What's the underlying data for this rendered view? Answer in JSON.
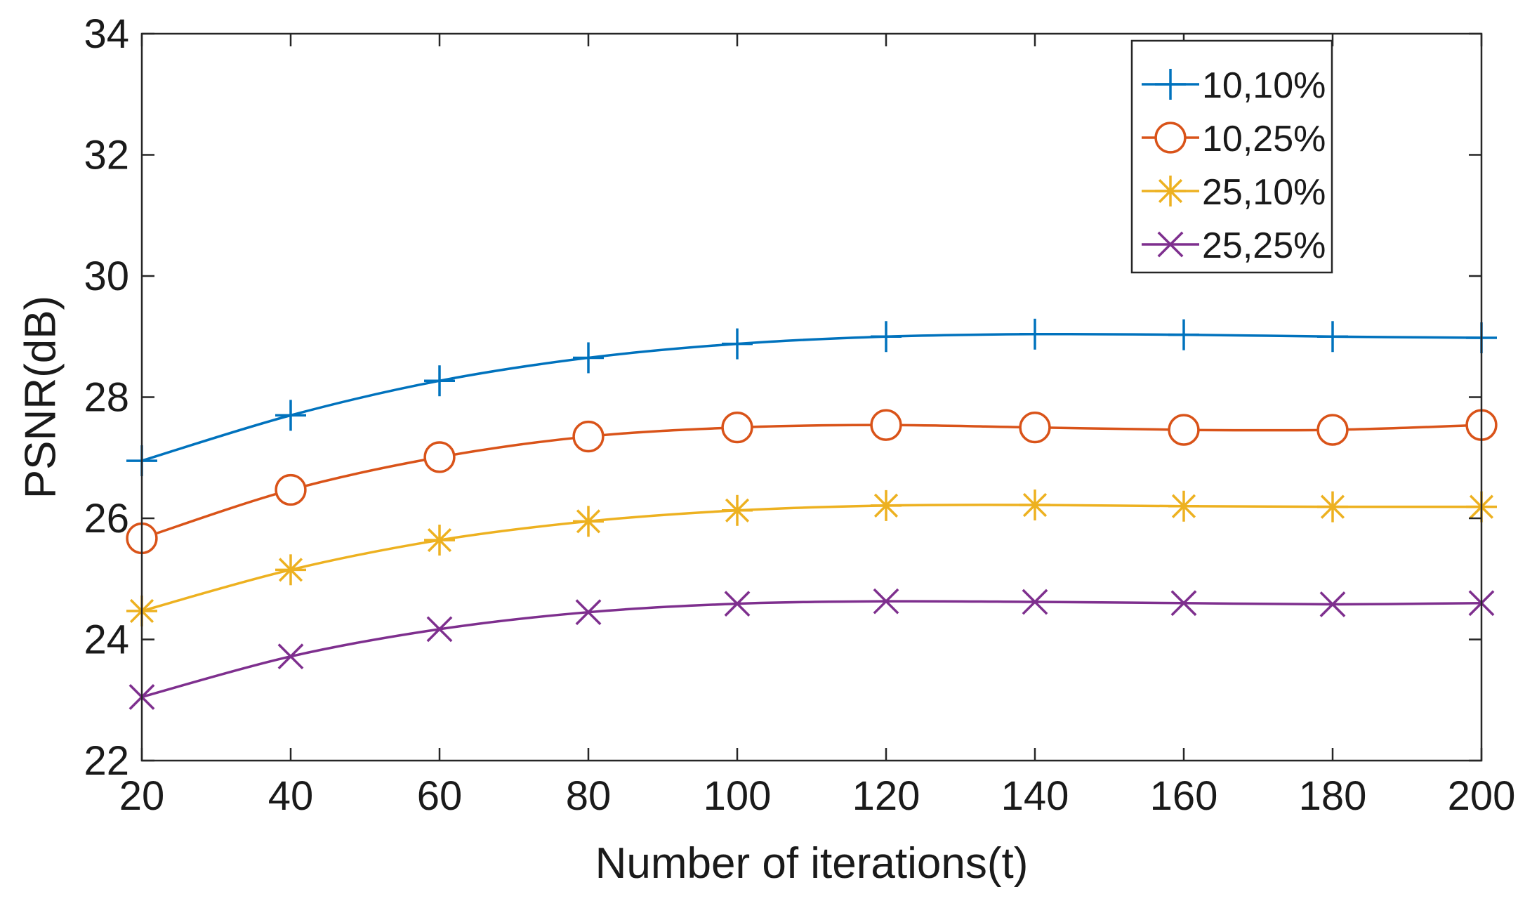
{
  "chart_data": {
    "type": "line",
    "title": "",
    "xlabel": "Number of iterations(t)",
    "ylabel": "PSNR(dB)",
    "x": [
      20,
      40,
      60,
      80,
      100,
      120,
      140,
      160,
      180,
      200
    ],
    "xlim": [
      20,
      200
    ],
    "ylim": [
      22,
      34
    ],
    "xticks": [
      20,
      40,
      60,
      80,
      100,
      120,
      140,
      160,
      180,
      200
    ],
    "yticks": [
      22,
      24,
      26,
      28,
      30,
      32,
      34
    ],
    "legend_position": "top-right",
    "grid": false,
    "series": [
      {
        "name": "10,10%",
        "marker": "plus",
        "color": "#0072BD",
        "values": [
          26.95,
          27.7,
          28.27,
          28.65,
          28.88,
          29.0,
          29.04,
          29.03,
          29.0,
          28.98
        ]
      },
      {
        "name": "10,25%",
        "marker": "circle",
        "color": "#D95319",
        "values": [
          25.67,
          26.47,
          27.01,
          27.35,
          27.5,
          27.54,
          27.5,
          27.46,
          27.46,
          27.54
        ]
      },
      {
        "name": "25,10%",
        "marker": "asterisk",
        "color": "#EDB120",
        "values": [
          24.47,
          25.15,
          25.64,
          25.95,
          26.13,
          26.21,
          26.22,
          26.2,
          26.19,
          26.19
        ]
      },
      {
        "name": "25,25%",
        "marker": "x",
        "color": "#7E2F8E",
        "values": [
          23.05,
          23.72,
          24.17,
          24.45,
          24.59,
          24.63,
          24.62,
          24.6,
          24.58,
          24.6
        ]
      }
    ]
  }
}
